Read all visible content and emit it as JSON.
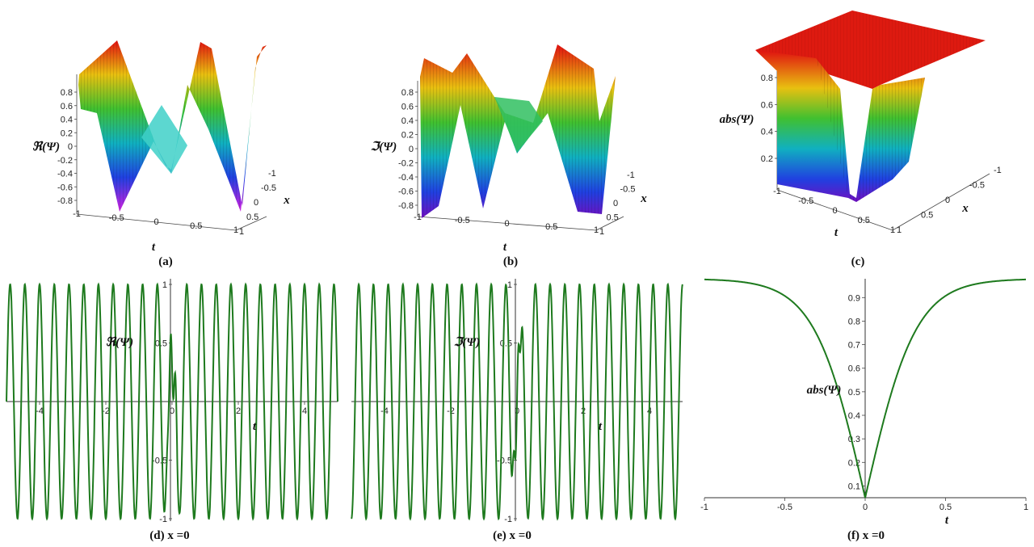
{
  "chart_data": [
    {
      "panel": "a",
      "type": "surface3d",
      "zlabel": "ℜ(Ψ)",
      "xlabel": "t",
      "ylabel": "x",
      "xlim": [
        -1,
        1
      ],
      "ylim": [
        -1,
        1
      ],
      "zlim": [
        -0.9,
        0.9
      ],
      "xticks": [
        "-1",
        "-0.5",
        "0",
        "0.5",
        "1"
      ],
      "yticks": [
        "-1",
        "-0.5",
        "0",
        "0.5",
        "1"
      ],
      "zticks": [
        "0.8",
        "0.6",
        "0.4",
        "0.2",
        "0",
        "-0.2",
        "-0.4",
        "-0.6",
        "-0.8"
      ],
      "caption": "(a)"
    },
    {
      "panel": "b",
      "type": "surface3d",
      "zlabel": "ℑ(Ψ)",
      "xlabel": "t",
      "ylabel": "x",
      "xlim": [
        -1,
        1
      ],
      "ylim": [
        -1,
        1
      ],
      "zlim": [
        -0.9,
        0.9
      ],
      "xticks": [
        "-1",
        "-0.5",
        "0",
        "0.5",
        "1"
      ],
      "yticks": [
        "-1",
        "-0.5",
        "0",
        "0.5",
        "1"
      ],
      "zticks": [
        "0.8",
        "0.6",
        "0.4",
        "0.2",
        "0",
        "-0.2",
        "-0.4",
        "-0.6",
        "-0.8"
      ],
      "caption": "(b)"
    },
    {
      "panel": "c",
      "type": "surface3d",
      "zlabel": "abs(Ψ)",
      "xlabel": "t",
      "ylabel": "x",
      "xlim": [
        -1,
        1
      ],
      "ylim": [
        -1,
        1
      ],
      "zlim": [
        0,
        1
      ],
      "xticks": [
        "-1",
        "-0.5",
        "0",
        "0.5",
        "1"
      ],
      "yticks": [
        "-1",
        "-0.5",
        "0",
        "0.5",
        "1"
      ],
      "zticks": [
        "0.8",
        "0.6",
        "0.4",
        "0.2"
      ],
      "caption": "(c)"
    },
    {
      "panel": "d",
      "type": "line",
      "ylabel": "ℜ(Ψ)",
      "xlabel": "t",
      "xlim": [
        -5,
        5
      ],
      "ylim": [
        -1,
        1
      ],
      "xticks": [
        "-4",
        "-2",
        "0",
        "2",
        "4"
      ],
      "yticks": [
        "1",
        "0.5",
        "-0.5",
        "-1"
      ],
      "series": [
        {
          "color": "#1e7a1e",
          "function": "real",
          "frequency": 2.25
        }
      ],
      "caption": "(d) x =0"
    },
    {
      "panel": "e",
      "type": "line",
      "ylabel": "ℑ(Ψ)",
      "xlabel": "t",
      "xlim": [
        -5,
        5
      ],
      "ylim": [
        -1,
        1
      ],
      "xticks": [
        "-4",
        "-2",
        "0",
        "2",
        "4"
      ],
      "yticks": [
        "1",
        "0.5",
        "-0.5",
        "-1"
      ],
      "series": [
        {
          "color": "#1e7a1e",
          "function": "imag",
          "frequency": 2.25
        }
      ],
      "caption": "(e) x =0"
    },
    {
      "panel": "f",
      "type": "line",
      "ylabel": "abs(Ψ)",
      "xlabel": "t",
      "xlim": [
        -1,
        1
      ],
      "ylim": [
        0.05,
        0.98
      ],
      "xticks": [
        "-1",
        "-0.5",
        "0",
        "0.5",
        "1"
      ],
      "yticks": [
        "0.9",
        "0.8",
        "0.7",
        "0.6",
        "0.5",
        "0.4",
        "0.3",
        "0.2",
        "0.1"
      ],
      "series": [
        {
          "color": "#1e7a1e",
          "function": "abs",
          "min": 0.05,
          "max": 0.98
        }
      ],
      "caption": "(f) x =0"
    }
  ]
}
